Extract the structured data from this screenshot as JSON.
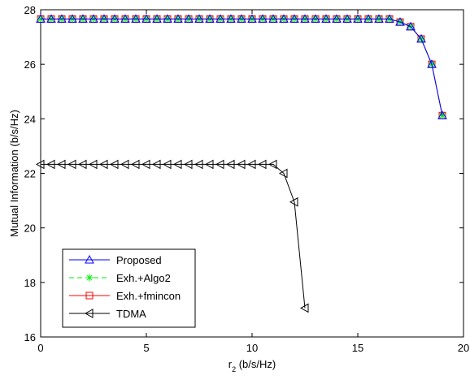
{
  "chart_data": {
    "type": "line",
    "title": "",
    "xlabel": {
      "main": "r",
      "sub": "2",
      "rest": " (b/s/Hz)"
    },
    "ylabel": "Mutual Information (b/s/Hz)",
    "xlim": [
      0,
      20
    ],
    "ylim": [
      16,
      28
    ],
    "xticks": [
      0,
      5,
      10,
      15,
      20
    ],
    "yticks": [
      16,
      18,
      20,
      22,
      24,
      26,
      28
    ],
    "grid": false,
    "legend_position": "bottom-left",
    "series": [
      {
        "name": "Proposed",
        "color": "#0000ff",
        "line": "solid",
        "marker": "triangle-up",
        "x": [
          0,
          0.5,
          1,
          1.5,
          2,
          2.5,
          3,
          3.5,
          4,
          4.5,
          5,
          5.5,
          6,
          6.5,
          7,
          7.5,
          8,
          8.5,
          9,
          9.5,
          10,
          10.5,
          11,
          11.5,
          12,
          12.5,
          13,
          13.5,
          14,
          14.5,
          15,
          15.5,
          16,
          16.5,
          17,
          17.5,
          18,
          18.5,
          19
        ],
        "y": [
          27.66,
          27.66,
          27.66,
          27.66,
          27.66,
          27.66,
          27.66,
          27.66,
          27.66,
          27.66,
          27.66,
          27.66,
          27.66,
          27.66,
          27.66,
          27.66,
          27.66,
          27.66,
          27.66,
          27.66,
          27.66,
          27.66,
          27.66,
          27.66,
          27.66,
          27.66,
          27.66,
          27.66,
          27.66,
          27.66,
          27.66,
          27.66,
          27.66,
          27.66,
          27.55,
          27.38,
          26.93,
          26.0,
          24.12
        ]
      },
      {
        "name": "Exh.+Algo2",
        "color": "#00ee00",
        "line": "dashed",
        "marker": "asterisk",
        "x": [
          0,
          0.5,
          1,
          1.5,
          2,
          2.5,
          3,
          3.5,
          4,
          4.5,
          5,
          5.5,
          6,
          6.5,
          7,
          7.5,
          8,
          8.5,
          9,
          9.5,
          10,
          10.5,
          11,
          11.5,
          12,
          12.5,
          13,
          13.5,
          14,
          14.5,
          15,
          15.5,
          16,
          16.5,
          17,
          17.5,
          18,
          18.5,
          19
        ],
        "y": [
          27.66,
          27.66,
          27.66,
          27.66,
          27.66,
          27.66,
          27.66,
          27.66,
          27.66,
          27.66,
          27.66,
          27.66,
          27.66,
          27.66,
          27.66,
          27.66,
          27.66,
          27.66,
          27.66,
          27.66,
          27.66,
          27.66,
          27.66,
          27.66,
          27.66,
          27.66,
          27.66,
          27.66,
          27.66,
          27.66,
          27.66,
          27.66,
          27.66,
          27.66,
          27.55,
          27.38,
          26.93,
          26.0,
          24.12
        ]
      },
      {
        "name": "Exh.+fmincon",
        "color": "#ff0000",
        "line": "solid",
        "marker": "square",
        "x": [
          0,
          0.5,
          1,
          1.5,
          2,
          2.5,
          3,
          3.5,
          4,
          4.5,
          5,
          5.5,
          6,
          6.5,
          7,
          7.5,
          8,
          8.5,
          9,
          9.5,
          10,
          10.5,
          11,
          11.5,
          12,
          12.5,
          13,
          13.5,
          14,
          14.5,
          15,
          15.5,
          16,
          16.5,
          17,
          17.5,
          18,
          18.5,
          19
        ],
        "y": [
          27.66,
          27.66,
          27.66,
          27.66,
          27.66,
          27.66,
          27.66,
          27.66,
          27.66,
          27.66,
          27.66,
          27.66,
          27.66,
          27.66,
          27.66,
          27.66,
          27.66,
          27.66,
          27.66,
          27.66,
          27.66,
          27.66,
          27.66,
          27.66,
          27.66,
          27.66,
          27.66,
          27.66,
          27.66,
          27.66,
          27.66,
          27.66,
          27.66,
          27.66,
          27.55,
          27.38,
          26.93,
          26.0,
          24.12
        ]
      },
      {
        "name": "TDMA",
        "color": "#000000",
        "line": "solid",
        "marker": "triangle-left",
        "x": [
          0,
          0.5,
          1,
          1.5,
          2,
          2.5,
          3,
          3.5,
          4,
          4.5,
          5,
          5.5,
          6,
          6.5,
          7,
          7.5,
          8,
          8.5,
          9,
          9.5,
          10,
          10.5,
          11,
          11.5,
          12,
          12.5
        ],
        "y": [
          22.33,
          22.33,
          22.33,
          22.33,
          22.33,
          22.33,
          22.33,
          22.33,
          22.33,
          22.33,
          22.33,
          22.33,
          22.33,
          22.33,
          22.33,
          22.33,
          22.33,
          22.33,
          22.33,
          22.33,
          22.33,
          22.33,
          22.33,
          22.0,
          20.95,
          17.06
        ]
      }
    ]
  }
}
